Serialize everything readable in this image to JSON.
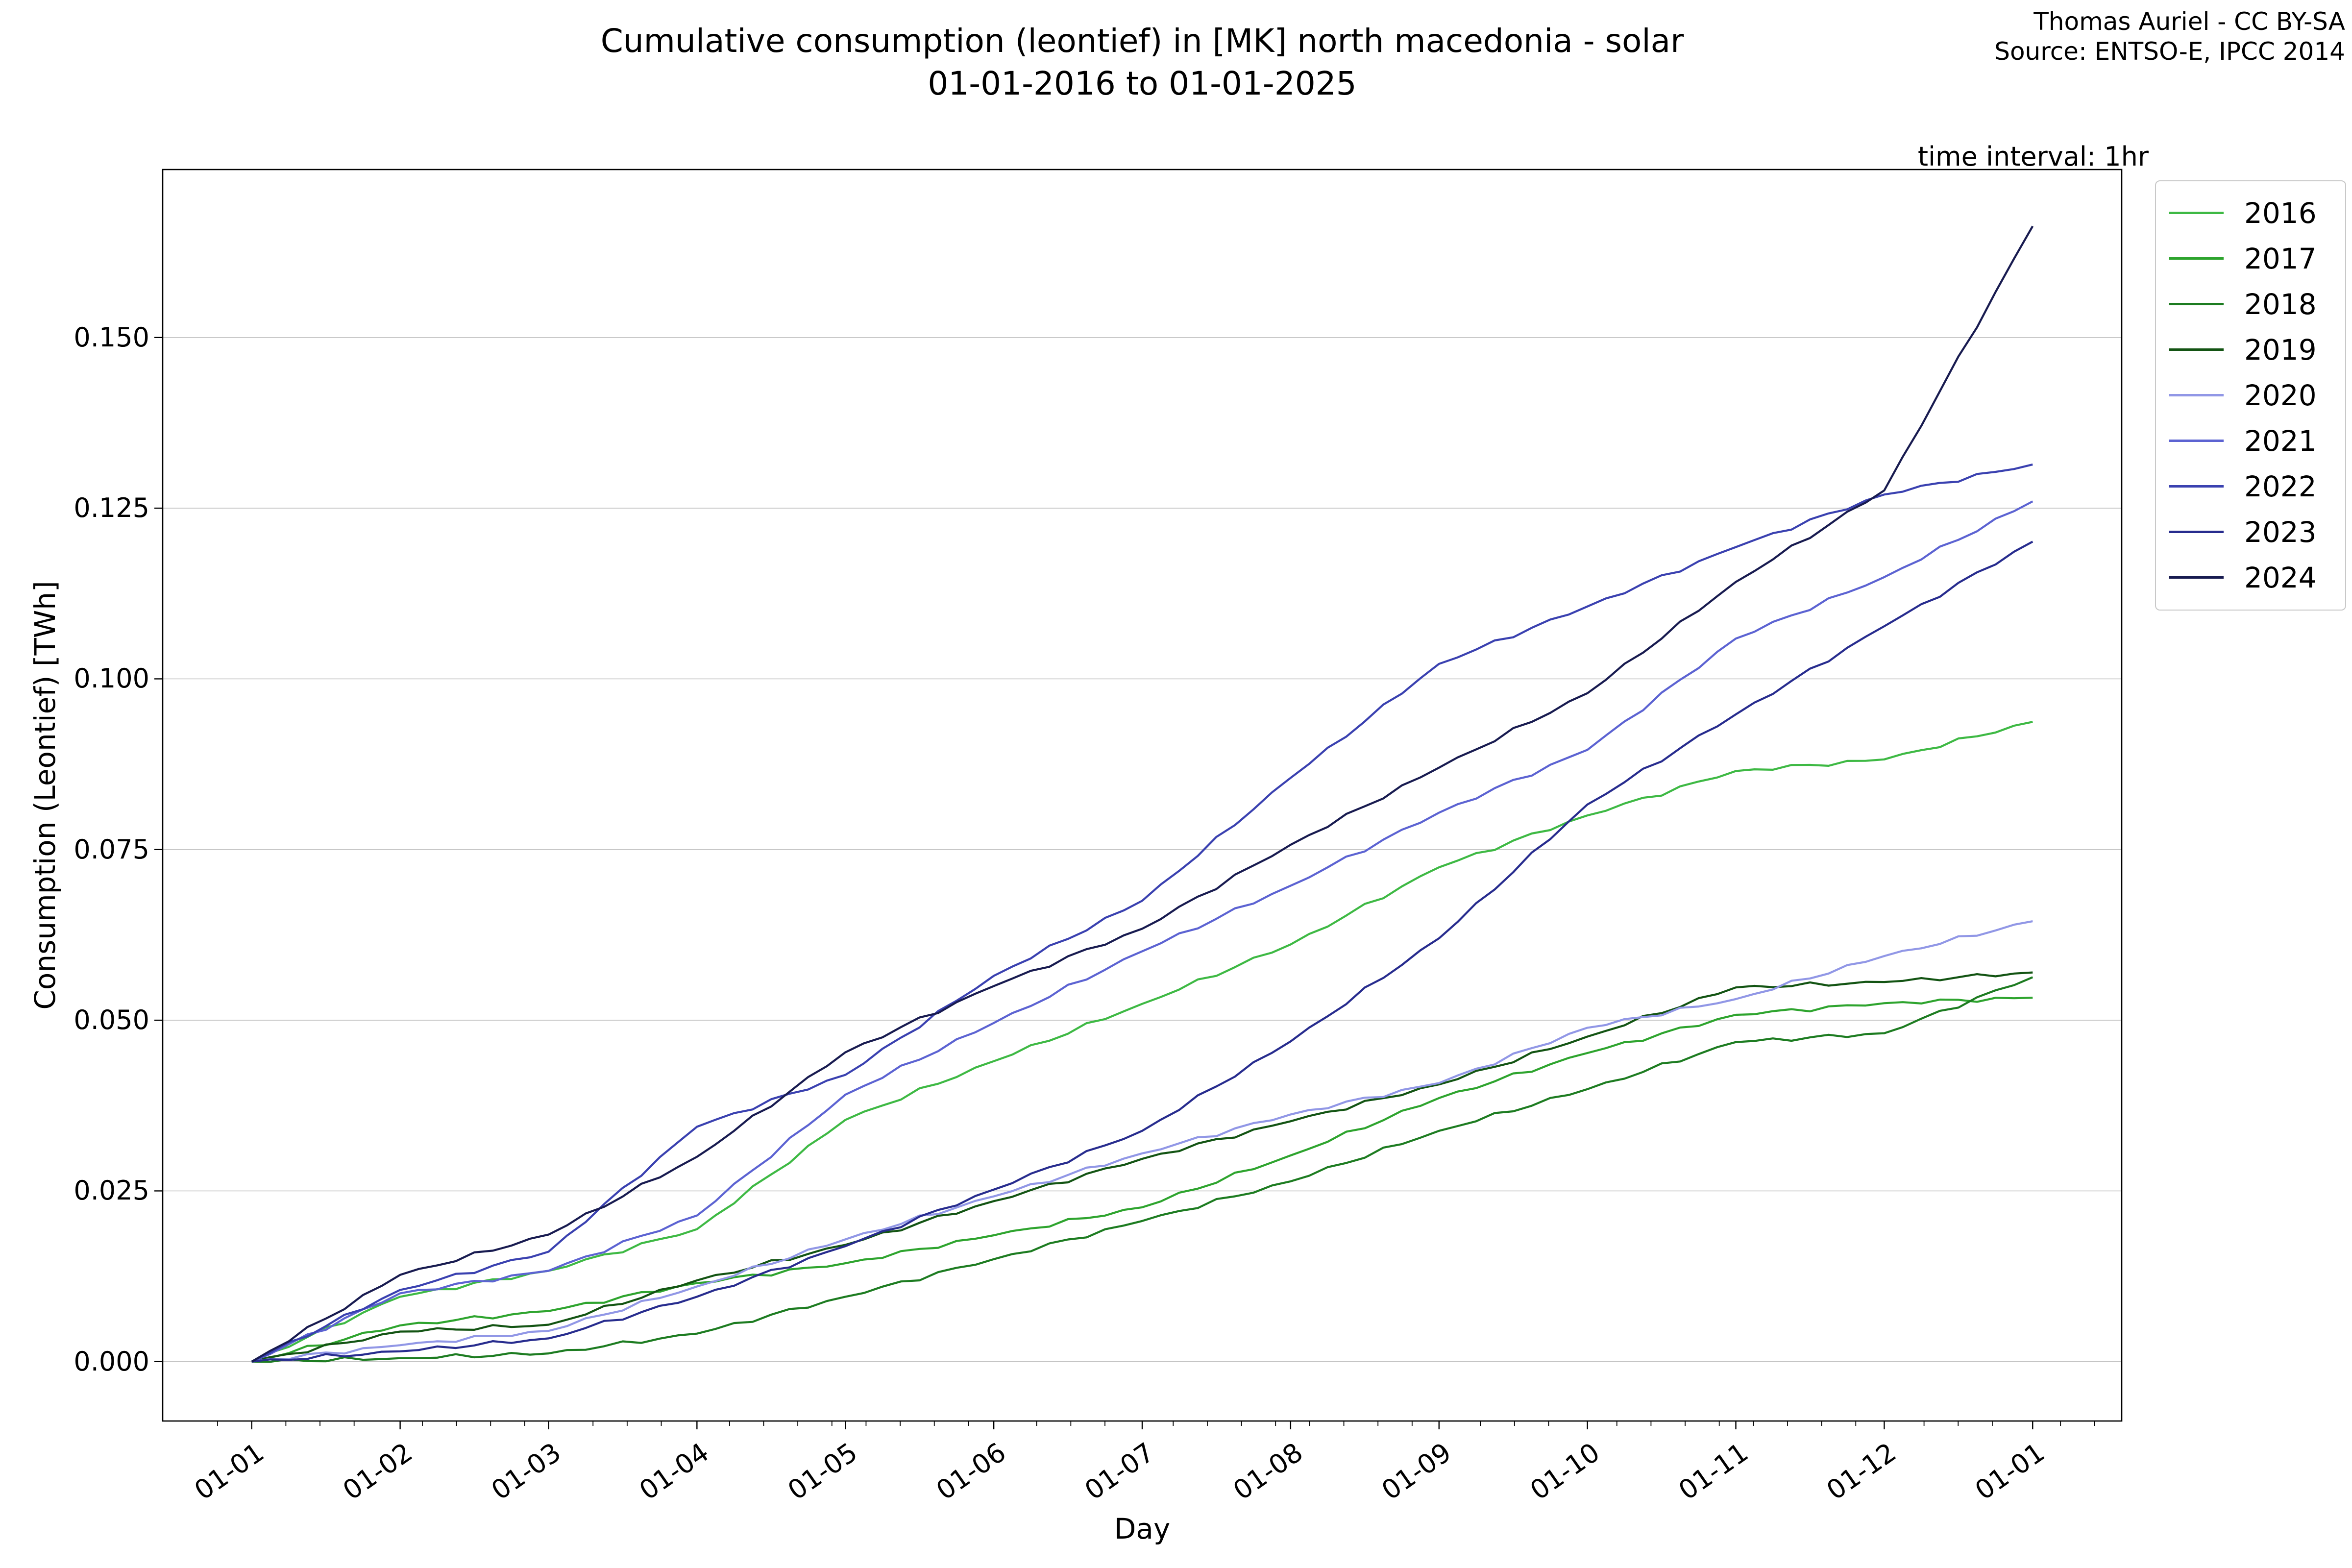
{
  "title": {
    "line1": "Cumulative consumption (leontief) in [MK] north macedonia - solar",
    "line2": "01-01-2016 to 01-01-2025"
  },
  "attribution": {
    "line1": "Thomas Auriel - CC BY-SA",
    "line2": "Source: ENTSO-E, IPCC 2014"
  },
  "annotations": {
    "time_interval": "time interval: 1hr"
  },
  "axes": {
    "xlabel": "Day",
    "ylabel": "Consumption (Leontief) [TWh]",
    "x_tick_labels": [
      "01-01",
      "01-02",
      "01-03",
      "01-04",
      "01-05",
      "01-06",
      "01-07",
      "01-08",
      "01-09",
      "01-10",
      "01-11",
      "01-12",
      "01-01"
    ],
    "y_tick_labels": [
      "0.000",
      "0.025",
      "0.050",
      "0.075",
      "0.100",
      "0.125",
      "0.150"
    ]
  },
  "chart_data": {
    "type": "line",
    "title": "Cumulative consumption (leontief) in [MK] north macedonia - solar 01-01-2016 to 01-01-2025",
    "xlabel": "Day",
    "ylabel": "Consumption (Leontief) [TWh]",
    "x_unit": "month-start ticks from 01-01 to following 01-01",
    "categories": [
      "01-01",
      "01-02",
      "01-03",
      "01-04",
      "01-05",
      "01-06",
      "01-07",
      "01-08",
      "01-09",
      "01-10",
      "01-11",
      "01-12",
      "01-01"
    ],
    "y_ticks": [
      0.0,
      0.025,
      0.05,
      0.075,
      0.1,
      0.125,
      0.15
    ],
    "ylim": [
      -0.0087,
      0.1746
    ],
    "grid": "horizontal",
    "legend_position": "upper right, outside axes",
    "series": [
      {
        "name": "2016",
        "color": "#3eb944",
        "values": [
          0,
          0.0095,
          0.0133,
          0.0194,
          0.0354,
          0.044,
          0.0524,
          0.0611,
          0.0724,
          0.08,
          0.0865,
          0.0882,
          0.0937
        ]
      },
      {
        "name": "2017",
        "color": "#2ea42e",
        "values": [
          0,
          0.0053,
          0.0074,
          0.0115,
          0.0144,
          0.0185,
          0.0226,
          0.0302,
          0.0386,
          0.0452,
          0.0508,
          0.0525,
          0.0533
        ]
      },
      {
        "name": "2018",
        "color": "#1d7c21",
        "values": [
          0,
          0.0005,
          0.0012,
          0.0041,
          0.0095,
          0.015,
          0.0206,
          0.0264,
          0.0338,
          0.0399,
          0.0468,
          0.0481,
          0.0563
        ]
      },
      {
        "name": "2019",
        "color": "#135413",
        "values": [
          0,
          0.0044,
          0.0054,
          0.0119,
          0.0171,
          0.0235,
          0.0297,
          0.0352,
          0.0406,
          0.0476,
          0.0548,
          0.0556,
          0.057
        ]
      },
      {
        "name": "2020",
        "color": "#9197e6",
        "values": [
          0,
          0.0024,
          0.0045,
          0.011,
          0.0179,
          0.0242,
          0.0305,
          0.0362,
          0.0408,
          0.0489,
          0.0531,
          0.0594,
          0.0645
        ]
      },
      {
        "name": "2021",
        "color": "#5c63d2",
        "values": [
          0,
          0.01,
          0.0133,
          0.0214,
          0.0391,
          0.0496,
          0.0601,
          0.0697,
          0.0804,
          0.0896,
          0.1059,
          0.1149,
          0.126
        ]
      },
      {
        "name": "2022",
        "color": "#3a41b0",
        "values": [
          0,
          0.0105,
          0.0161,
          0.0344,
          0.042,
          0.0565,
          0.0675,
          0.0855,
          0.1022,
          0.1106,
          0.1193,
          0.127,
          0.1314
        ]
      },
      {
        "name": "2023",
        "color": "#272c8e",
        "values": [
          0,
          0.0015,
          0.0034,
          0.0095,
          0.0169,
          0.0252,
          0.0338,
          0.0469,
          0.062,
          0.0816,
          0.0948,
          0.1077,
          0.1201
        ]
      },
      {
        "name": "2024",
        "color": "#181b50",
        "values": [
          0,
          0.0127,
          0.0186,
          0.03,
          0.0453,
          0.055,
          0.0634,
          0.0757,
          0.087,
          0.0979,
          0.1142,
          0.1276,
          0.1663
        ]
      }
    ]
  }
}
